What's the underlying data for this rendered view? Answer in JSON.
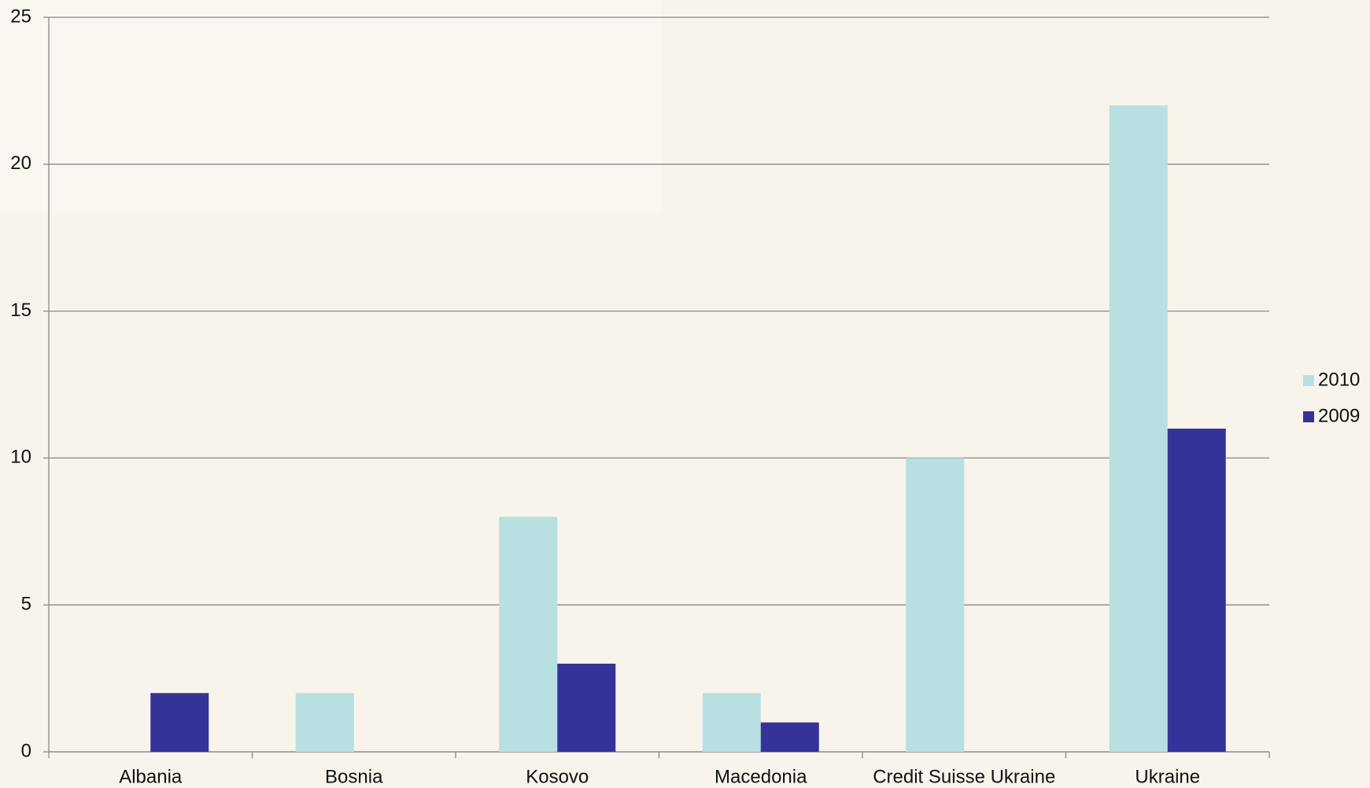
{
  "chart_data": {
    "type": "bar",
    "categories": [
      "Albania",
      "Bosnia",
      "Kosovo",
      "Macedonia",
      "Credit Suisse Ukraine",
      "Ukraine"
    ],
    "series": [
      {
        "name": "2010",
        "color": "#b8e0e2",
        "values": [
          0,
          2,
          8,
          2,
          10,
          22
        ]
      },
      {
        "name": "2009",
        "color": "#343399",
        "values": [
          2,
          0,
          3,
          1,
          0,
          11
        ]
      }
    ],
    "ylim": [
      0,
      25
    ],
    "yticks": [
      0,
      5,
      10,
      15,
      20,
      25
    ],
    "grid": true,
    "legend": "right"
  }
}
